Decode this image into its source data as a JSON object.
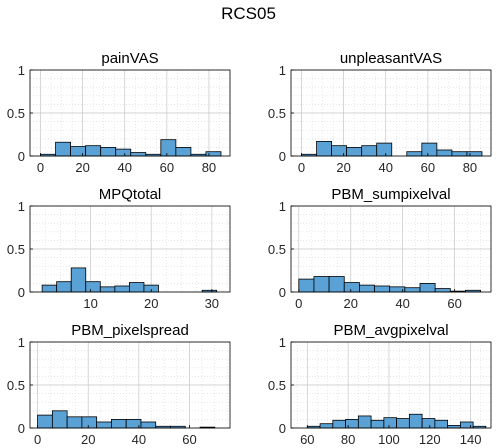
{
  "figure": {
    "title": "RCS05"
  },
  "colors": {
    "bar_fill": "#5aa2d6",
    "bar_edge": "#000000",
    "grid": "#c8c8c8",
    "axis": "#000000"
  },
  "chart_data": [
    {
      "type": "bar",
      "title": "painVAS",
      "bin_edges": [
        0,
        7.143,
        14.286,
        21.429,
        28.571,
        35.714,
        42.857,
        50,
        57.143,
        64.286,
        71.429,
        78.571,
        85.714
      ],
      "values": [
        0.02,
        0.16,
        0.11,
        0.12,
        0.1,
        0.08,
        0.04,
        0.02,
        0.19,
        0.1,
        0.02,
        0.05
      ],
      "xlim": [
        -5,
        90
      ],
      "ylim": [
        0,
        1
      ],
      "xticks": [
        0,
        20,
        40,
        60,
        80
      ],
      "xtick_labels": [
        "0",
        "20",
        "40",
        "60",
        "80"
      ],
      "yticks": [
        0,
        0.5,
        1
      ],
      "ytick_labels": [
        "0",
        "0.5",
        "1"
      ],
      "grid": true
    },
    {
      "type": "bar",
      "title": "unpleasantVAS",
      "bin_edges": [
        0,
        7.143,
        14.286,
        21.429,
        28.571,
        35.714,
        42.857,
        50,
        57.143,
        64.286,
        71.429,
        78.571,
        85.714
      ],
      "values": [
        0.02,
        0.17,
        0.12,
        0.1,
        0.12,
        0.15,
        0,
        0.05,
        0.15,
        0.07,
        0.05,
        0.05
      ],
      "xlim": [
        -5,
        90
      ],
      "ylim": [
        0,
        1
      ],
      "xticks": [
        0,
        20,
        40,
        60,
        80
      ],
      "xtick_labels": [
        "0",
        "20",
        "40",
        "60",
        "80"
      ],
      "yticks": [
        0,
        0.5,
        1
      ],
      "ytick_labels": [
        "0",
        "0.5",
        "1"
      ],
      "grid": true
    },
    {
      "type": "bar",
      "title": "MPQtotal",
      "bin_edges": [
        2,
        4.4,
        6.8,
        9.2,
        11.6,
        14,
        16.4,
        18.8,
        21.2,
        23.6,
        26,
        28.4,
        30.8
      ],
      "values": [
        0.08,
        0.12,
        0.28,
        0.12,
        0.06,
        0.07,
        0.11,
        0.08,
        0,
        0,
        0,
        0.02
      ],
      "xlim": [
        0,
        33
      ],
      "ylim": [
        0,
        1
      ],
      "xticks": [
        10,
        20,
        30
      ],
      "xtick_labels": [
        "10",
        "20",
        "30"
      ],
      "yticks": [
        0,
        0.5,
        1
      ],
      "ytick_labels": [
        "0",
        "0.5",
        "1"
      ],
      "grid": true
    },
    {
      "type": "bar",
      "title": "PBM_sumpixelval",
      "bin_edges": [
        0,
        5.833,
        11.667,
        17.5,
        23.333,
        29.167,
        35,
        40.833,
        46.667,
        52.5,
        58.333,
        64.167,
        70
      ],
      "values": [
        0.15,
        0.18,
        0.18,
        0.11,
        0.08,
        0.07,
        0.06,
        0.05,
        0.1,
        0.04,
        0.01,
        0.02
      ],
      "xlim": [
        -3,
        74
      ],
      "ylim": [
        0,
        1
      ],
      "xticks": [
        0,
        20,
        40,
        60
      ],
      "xtick_labels": [
        "0",
        "20",
        "40",
        "60"
      ],
      "yticks": [
        0,
        0.5,
        1
      ],
      "ytick_labels": [
        "0",
        "0.5",
        "1"
      ],
      "grid": true
    },
    {
      "type": "bar",
      "title": "PBM_pixelspread",
      "bin_edges": [
        0,
        5.833,
        11.667,
        17.5,
        23.333,
        29.167,
        35,
        40.833,
        46.667,
        52.5,
        58.333,
        64.167,
        70
      ],
      "values": [
        0.15,
        0.2,
        0.13,
        0.13,
        0.07,
        0.1,
        0.1,
        0.07,
        0.02,
        0.02,
        0,
        0.01
      ],
      "xlim": [
        -3,
        76
      ],
      "ylim": [
        0,
        1
      ],
      "xticks": [
        0,
        20,
        40,
        60
      ],
      "xtick_labels": [
        "0",
        "20",
        "40",
        "60"
      ],
      "yticks": [
        0,
        0.5,
        1
      ],
      "ytick_labels": [
        "0",
        "0.5",
        "1"
      ],
      "grid": true
    },
    {
      "type": "bar",
      "title": "PBM_avgpixelval",
      "bin_edges": [
        60,
        66.25,
        72.5,
        78.75,
        85,
        91.25,
        97.5,
        103.75,
        110,
        116.25,
        122.5,
        128.75,
        135,
        141.25,
        147.5
      ],
      "values": [
        0.02,
        0.05,
        0.09,
        0.1,
        0.14,
        0.09,
        0.12,
        0.11,
        0.16,
        0.11,
        0.09,
        0.03,
        0.07,
        0.02
      ],
      "xlim": [
        52,
        150
      ],
      "ylim": [
        0,
        1
      ],
      "xticks": [
        60,
        80,
        100,
        120,
        140
      ],
      "xtick_labels": [
        "60",
        "80",
        "100",
        "120",
        "140"
      ],
      "yticks": [
        0,
        0.5,
        1
      ],
      "ytick_labels": [
        "0",
        "0.5",
        "1"
      ],
      "grid": true
    }
  ]
}
